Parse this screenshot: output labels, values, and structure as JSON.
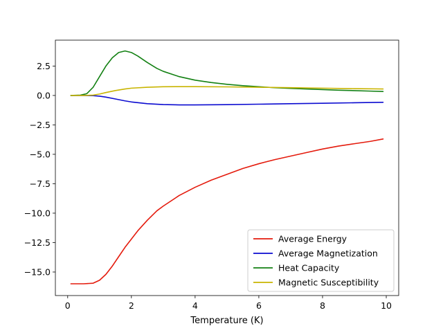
{
  "chart_data": {
    "type": "line",
    "title": "",
    "xlabel": "Temperature (K)",
    "ylabel": "",
    "xlim": [
      -0.3864,
      10.3905
    ],
    "ylim": [
      -17.0,
      4.7
    ],
    "x_ticks": [
      0,
      2,
      4,
      6,
      8,
      10
    ],
    "x_tick_labels": [
      "0",
      "2",
      "4",
      "6",
      "8",
      "10"
    ],
    "y_ticks": [
      -15.0,
      -12.5,
      -10.0,
      -7.5,
      -5.0,
      -2.5,
      0.0,
      2.5
    ],
    "y_tick_labels": [
      "−15.0",
      "−12.5",
      "−10.0",
      "−7.5",
      "−5.0",
      "−2.5",
      "0.0",
      "2.5"
    ],
    "grid": false,
    "legend_position": "lower-right",
    "series": [
      {
        "name": "Average Energy",
        "color": "#e41a0c",
        "x": [
          0.1,
          0.5,
          0.8,
          1.0,
          1.2,
          1.4,
          1.6,
          1.8,
          2.0,
          2.2,
          2.5,
          2.8,
          3.0,
          3.5,
          4.0,
          4.5,
          5.0,
          5.5,
          6.0,
          6.5,
          7.0,
          7.5,
          8.0,
          8.5,
          9.0,
          9.5,
          9.9
        ],
        "values": [
          -16.0,
          -16.0,
          -15.95,
          -15.7,
          -15.2,
          -14.5,
          -13.7,
          -12.9,
          -12.2,
          -11.5,
          -10.6,
          -9.8,
          -9.4,
          -8.5,
          -7.8,
          -7.2,
          -6.7,
          -6.2,
          -5.8,
          -5.45,
          -5.15,
          -4.85,
          -4.55,
          -4.3,
          -4.1,
          -3.9,
          -3.7
        ]
      },
      {
        "name": "Average Magnetization",
        "color": "#0a0ad0",
        "x": [
          0.1,
          0.5,
          0.8,
          1.0,
          1.2,
          1.5,
          1.8,
          2.0,
          2.5,
          3.0,
          3.5,
          4.0,
          5.0,
          6.0,
          7.0,
          8.0,
          9.0,
          9.9
        ],
        "values": [
          0.0,
          0.0,
          -0.02,
          -0.06,
          -0.14,
          -0.3,
          -0.46,
          -0.55,
          -0.7,
          -0.77,
          -0.8,
          -0.8,
          -0.78,
          -0.74,
          -0.7,
          -0.66,
          -0.62,
          -0.58
        ]
      },
      {
        "name": "Heat Capacity",
        "color": "#128012",
        "x": [
          0.1,
          0.4,
          0.6,
          0.8,
          1.0,
          1.2,
          1.4,
          1.6,
          1.8,
          2.0,
          2.2,
          2.5,
          2.8,
          3.0,
          3.5,
          4.0,
          4.5,
          5.0,
          5.5,
          6.0,
          6.5,
          7.0,
          7.5,
          8.0,
          8.5,
          9.0,
          9.5,
          9.9
        ],
        "values": [
          0.0,
          0.03,
          0.15,
          0.7,
          1.6,
          2.5,
          3.2,
          3.65,
          3.78,
          3.65,
          3.35,
          2.8,
          2.3,
          2.05,
          1.6,
          1.3,
          1.1,
          0.95,
          0.83,
          0.74,
          0.66,
          0.6,
          0.55,
          0.5,
          0.45,
          0.41,
          0.37,
          0.34
        ]
      },
      {
        "name": "Magnetic Susceptibility",
        "color": "#c8b400",
        "x": [
          0.1,
          0.5,
          0.8,
          1.0,
          1.2,
          1.5,
          1.8,
          2.0,
          2.5,
          3.0,
          3.5,
          4.0,
          5.0,
          6.0,
          7.0,
          8.0,
          9.0,
          9.9
        ],
        "values": [
          0.0,
          0.0,
          0.03,
          0.12,
          0.25,
          0.42,
          0.55,
          0.62,
          0.7,
          0.74,
          0.75,
          0.75,
          0.73,
          0.7,
          0.66,
          0.62,
          0.58,
          0.55
        ]
      }
    ]
  }
}
